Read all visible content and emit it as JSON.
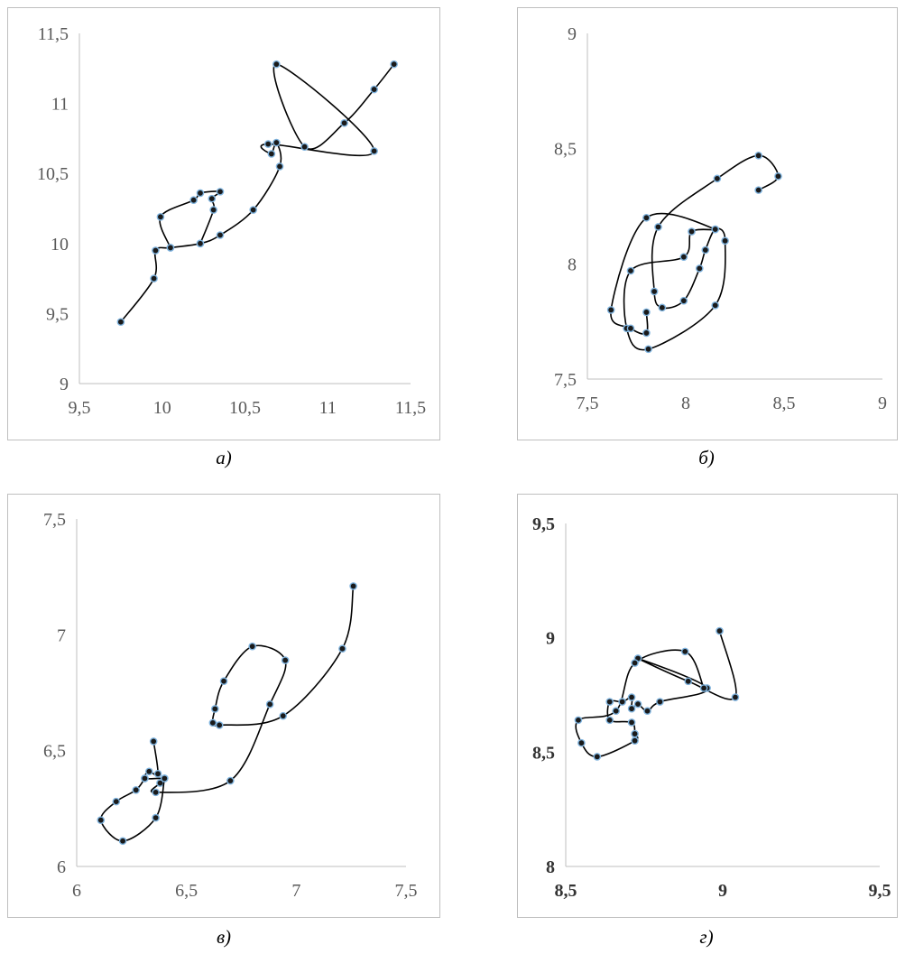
{
  "chart_data": [
    {
      "type": "scatter",
      "caption": "а)",
      "xlim": [
        9.5,
        11.5
      ],
      "ylim": [
        9,
        11.5
      ],
      "xticks": [
        "9,5",
        "10",
        "10,5",
        "11",
        "11,5"
      ],
      "yticks": [
        "9",
        "9,5",
        "10",
        "10,5",
        "11",
        "11,5"
      ],
      "bold_ticks": false,
      "grid": false,
      "points": [
        [
          9.75,
          9.44
        ],
        [
          9.95,
          9.75
        ],
        [
          9.96,
          9.95
        ],
        [
          10.05,
          9.97
        ],
        [
          10.23,
          10.0
        ],
        [
          10.35,
          10.06
        ],
        [
          10.55,
          10.24
        ],
        [
          10.71,
          10.55
        ],
        [
          10.69,
          10.72
        ],
        [
          10.66,
          10.64
        ],
        [
          10.64,
          10.71
        ],
        [
          11.28,
          10.66
        ],
        [
          10.69,
          11.28
        ],
        [
          10.86,
          10.69
        ],
        [
          11.1,
          10.86
        ],
        [
          11.28,
          11.1
        ],
        [
          11.4,
          11.28
        ]
      ],
      "points_loop": [
        [
          10.31,
          10.24
        ],
        [
          10.3,
          10.32
        ],
        [
          10.35,
          10.37
        ],
        [
          10.23,
          10.36
        ],
        [
          10.19,
          10.31
        ],
        [
          9.99,
          10.19
        ]
      ]
    },
    {
      "type": "scatter",
      "caption": "б)",
      "xlim": [
        7.5,
        9
      ],
      "ylim": [
        7.5,
        9
      ],
      "xticks": [
        "7,5",
        "8",
        "8,5",
        "9"
      ],
      "yticks": [
        "7,5",
        "8",
        "8,5",
        "9"
      ],
      "bold_ticks": false,
      "grid": false,
      "points": [
        [
          8.37,
          8.32
        ],
        [
          8.47,
          8.38
        ],
        [
          8.37,
          8.47
        ],
        [
          8.16,
          8.37
        ],
        [
          7.86,
          8.16
        ],
        [
          7.84,
          7.88
        ],
        [
          7.88,
          7.81
        ],
        [
          7.99,
          7.84
        ],
        [
          8.07,
          7.98
        ],
        [
          8.1,
          8.06
        ],
        [
          8.15,
          8.15
        ],
        [
          8.2,
          8.1
        ],
        [
          8.15,
          7.82
        ],
        [
          7.81,
          7.63
        ],
        [
          7.7,
          7.72
        ],
        [
          7.72,
          7.97
        ],
        [
          7.99,
          8.03
        ],
        [
          8.03,
          8.14
        ],
        [
          8.15,
          8.15
        ],
        [
          7.8,
          8.2
        ],
        [
          7.62,
          7.8
        ],
        [
          7.72,
          7.72
        ],
        [
          7.8,
          7.7
        ],
        [
          7.8,
          7.79
        ]
      ]
    },
    {
      "type": "scatter",
      "caption": "в)",
      "xlim": [
        6,
        7.5
      ],
      "ylim": [
        6,
        7.5
      ],
      "xticks": [
        "6",
        "6,5",
        "7",
        "7,5"
      ],
      "yticks": [
        "6",
        "6,5",
        "7",
        "7,5"
      ],
      "bold_ticks": false,
      "grid": false,
      "points": [
        [
          6.35,
          6.54
        ],
        [
          6.37,
          6.4
        ],
        [
          6.33,
          6.41
        ],
        [
          6.31,
          6.38
        ],
        [
          6.4,
          6.38
        ],
        [
          6.38,
          6.36
        ],
        [
          6.36,
          6.32
        ],
        [
          6.7,
          6.37
        ],
        [
          6.88,
          6.7
        ],
        [
          6.95,
          6.89
        ],
        [
          6.8,
          6.95
        ],
        [
          6.67,
          6.8
        ],
        [
          6.63,
          6.68
        ],
        [
          6.62,
          6.62
        ],
        [
          6.65,
          6.61
        ],
        [
          6.94,
          6.65
        ],
        [
          7.21,
          6.94
        ],
        [
          7.26,
          7.21
        ]
      ],
      "points_loop": [
        [
          6.36,
          6.21
        ],
        [
          6.21,
          6.11
        ],
        [
          6.11,
          6.2
        ],
        [
          6.18,
          6.28
        ],
        [
          6.27,
          6.33
        ]
      ]
    },
    {
      "type": "scatter",
      "caption": "г)",
      "xlim": [
        8.5,
        9.5
      ],
      "ylim": [
        8,
        9.5
      ],
      "xticks": [
        "8,5",
        "9",
        "9,5"
      ],
      "yticks": [
        "8",
        "8,5",
        "9",
        "9,5"
      ],
      "bold_ticks": true,
      "grid": false,
      "points": [
        [
          8.99,
          9.03
        ],
        [
          9.04,
          8.74
        ],
        [
          8.89,
          8.81
        ],
        [
          8.73,
          8.91
        ],
        [
          8.95,
          8.78
        ],
        [
          8.8,
          8.72
        ],
        [
          8.76,
          8.68
        ],
        [
          8.73,
          8.71
        ],
        [
          8.71,
          8.69
        ],
        [
          8.71,
          8.74
        ],
        [
          8.68,
          8.72
        ],
        [
          8.64,
          8.72
        ],
        [
          8.64,
          8.64
        ],
        [
          8.71,
          8.63
        ],
        [
          8.72,
          8.58
        ],
        [
          8.72,
          8.55
        ],
        [
          8.6,
          8.48
        ],
        [
          8.55,
          8.54
        ],
        [
          8.54,
          8.64
        ],
        [
          8.66,
          8.68
        ],
        [
          8.72,
          8.89
        ],
        [
          8.88,
          8.94
        ],
        [
          8.94,
          8.78
        ]
      ]
    }
  ]
}
